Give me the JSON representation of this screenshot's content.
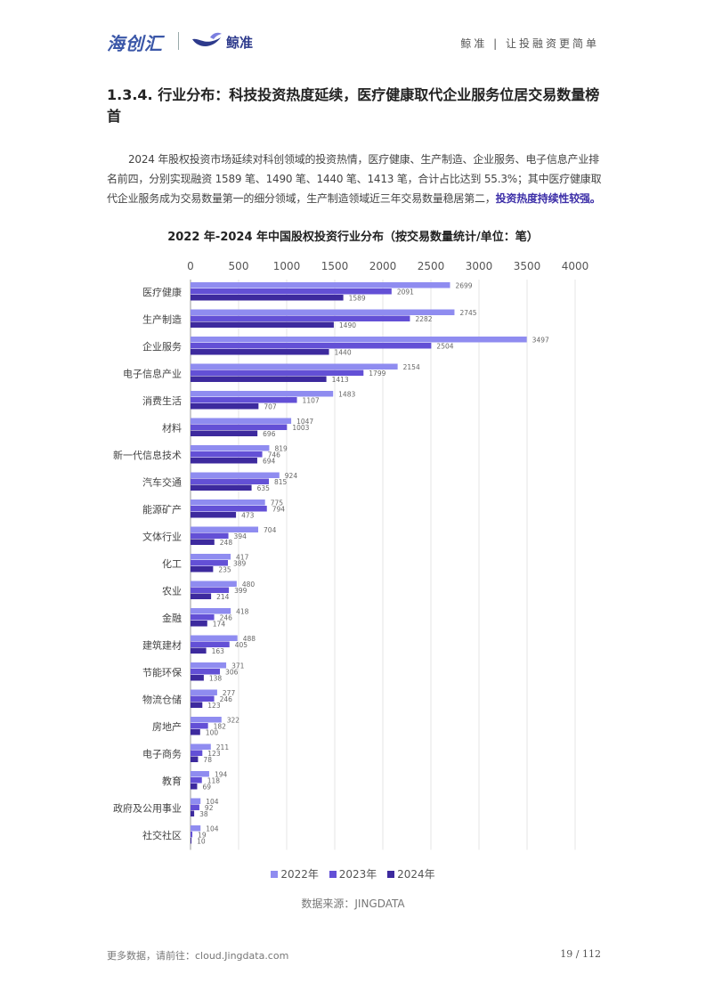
{
  "header": {
    "logo_left": "海创汇",
    "logo_right": "鲸准",
    "slogan": "鲸准 | 让投融资更简单"
  },
  "section": {
    "title": "1.3.4.  行业分布：科技投资热度延续，医疗健康取代企业服务位居交易数量榜首",
    "paragraph": "2024 年股权投资市场延续对科创领域的投资热情，医疗健康、生产制造、企业服务、电子信息产业排名前四，分别实现融资 1589 笔、1490 笔、1440 笔、1413 笔，合计占比达到 55.3%；其中医疗健康取代企业服务成为交易数量第一的细分领域，生产制造领域近三年交易数量稳居第二，",
    "paragraph_highlight": "投资热度持续性较强。"
  },
  "chart_data": {
    "type": "bar",
    "orientation": "horizontal",
    "title": "2022 年-2024 年中国股权投资行业分布（按交易数量统计/单位：笔）",
    "categories": [
      "医疗健康",
      "生产制造",
      "企业服务",
      "电子信息产业",
      "消费生活",
      "材料",
      "新一代信息技术",
      "汽车交通",
      "能源矿产",
      "文体行业",
      "化工",
      "农业",
      "金融",
      "建筑建材",
      "节能环保",
      "物流仓储",
      "房地产",
      "电子商务",
      "教育",
      "政府及公用事业",
      "社交社区"
    ],
    "series": [
      {
        "name": "2022年",
        "color": "#8f8cf0",
        "values": [
          2699,
          2745,
          3497,
          2154,
          1483,
          1047,
          819,
          924,
          775,
          704,
          417,
          480,
          418,
          488,
          371,
          277,
          322,
          211,
          194,
          104,
          104
        ]
      },
      {
        "name": "2023年",
        "color": "#6350d6",
        "values": [
          2091,
          2282,
          2504,
          1799,
          1107,
          1003,
          746,
          815,
          794,
          394,
          389,
          399,
          246,
          405,
          306,
          246,
          182,
          123,
          118,
          92,
          19
        ]
      },
      {
        "name": "2024年",
        "color": "#3d2a9e",
        "values": [
          1589,
          1490,
          1440,
          1413,
          707,
          696,
          694,
          635,
          473,
          248,
          235,
          214,
          174,
          163,
          138,
          123,
          100,
          78,
          69,
          38,
          10
        ]
      }
    ],
    "xlim": [
      0,
      4000
    ],
    "xticks": [
      0,
      500,
      1000,
      1500,
      2000,
      2500,
      3000,
      3500,
      4000
    ],
    "x_axis_position": "top",
    "grid": true,
    "legend_position": "bottom"
  },
  "legend": {
    "s1": "2022年",
    "s2": "2023年",
    "s3": "2024年"
  },
  "source": "数据来源：JINGDATA",
  "footer": {
    "more_data": "更多数据，请前往：cloud.Jingdata.com",
    "page": "19 / 112"
  }
}
